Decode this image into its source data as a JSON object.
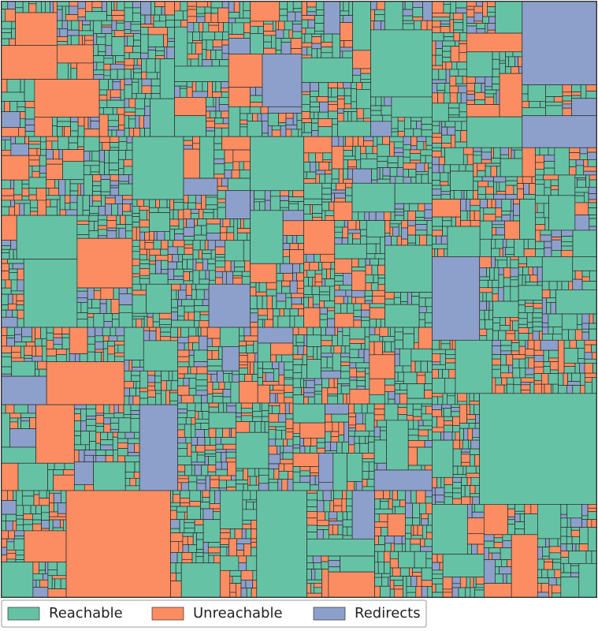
{
  "chart_data": {
    "type": "mosaic",
    "series": [
      {
        "name": "Reachable",
        "color": "#66c2a5"
      },
      {
        "name": "Unreachable",
        "color": "#fc8d62"
      },
      {
        "name": "Redirects",
        "color": "#8da0cb"
      }
    ]
  }
}
